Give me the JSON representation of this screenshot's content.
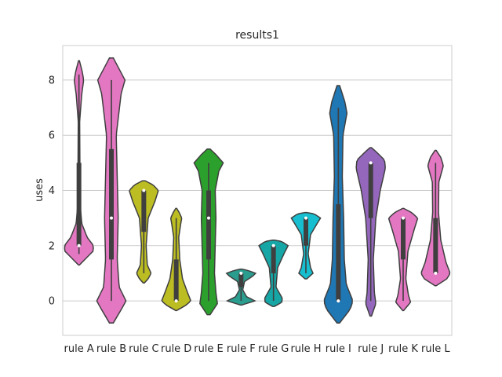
{
  "chart_data": {
    "type": "violin",
    "title": "results1",
    "xlabel": "",
    "ylabel": "uses",
    "ylim": [
      -1.25,
      9.25
    ],
    "yticks": [
      0,
      2,
      4,
      6,
      8
    ],
    "grid": true,
    "categories": [
      "rule A",
      "rule B",
      "rule C",
      "rule D",
      "rule E",
      "rule F",
      "rule G",
      "rule H",
      "rule I",
      "rule J",
      "rule K",
      "rule L"
    ],
    "series": [
      {
        "category": "rule A",
        "color": "#e377c2",
        "kde_range": [
          1.3,
          8.7
        ],
        "whisker": [
          1.7,
          8.2
        ],
        "iqr": [
          2.0,
          5.0
        ],
        "median": 2,
        "density": [
          [
            1.3,
            0.02
          ],
          [
            1.5,
            0.25
          ],
          [
            1.8,
            0.6
          ],
          [
            2.0,
            0.62
          ],
          [
            2.3,
            0.35
          ],
          [
            2.8,
            0.12
          ],
          [
            3.5,
            0.05
          ],
          [
            5,
            0.04
          ],
          [
            6.5,
            0.03
          ],
          [
            7.5,
            0.12
          ],
          [
            8.0,
            0.2
          ],
          [
            8.3,
            0.14
          ],
          [
            8.7,
            0.02
          ]
        ]
      },
      {
        "category": "rule B",
        "color": "#e377c2",
        "kde_range": [
          -0.8,
          8.8
        ],
        "whisker": [
          0,
          8
        ],
        "iqr": [
          1.5,
          5.5
        ],
        "median": 3,
        "density": [
          [
            -0.8,
            0.02
          ],
          [
            -0.2,
            0.12
          ],
          [
            0,
            0.15
          ],
          [
            0.5,
            0.08
          ],
          [
            1.5,
            0.06
          ],
          [
            3,
            0.07
          ],
          [
            4.5,
            0.06
          ],
          [
            6,
            0.05
          ],
          [
            7.5,
            0.1
          ],
          [
            8,
            0.14
          ],
          [
            8.4,
            0.08
          ],
          [
            8.8,
            0.02
          ]
        ]
      },
      {
        "category": "rule C",
        "color": "#bcbd22",
        "kde_range": [
          0.65,
          4.35
        ],
        "whisker": [
          1,
          4
        ],
        "iqr": [
          2.5,
          4.0
        ],
        "median": 4,
        "density": [
          [
            0.65,
            0.02
          ],
          [
            0.8,
            0.15
          ],
          [
            1.0,
            0.25
          ],
          [
            1.3,
            0.12
          ],
          [
            2,
            0.08
          ],
          [
            3,
            0.15
          ],
          [
            3.6,
            0.38
          ],
          [
            4.0,
            0.5
          ],
          [
            4.2,
            0.32
          ],
          [
            4.35,
            0.05
          ]
        ]
      },
      {
        "category": "rule D",
        "color": "#bcbd22",
        "kde_range": [
          -0.35,
          3.35
        ],
        "whisker": [
          0,
          3
        ],
        "iqr": [
          0,
          1.5
        ],
        "median": 0,
        "density": [
          [
            -0.35,
            0.02
          ],
          [
            -0.15,
            0.4
          ],
          [
            0,
            0.58
          ],
          [
            0.3,
            0.45
          ],
          [
            0.8,
            0.25
          ],
          [
            1.5,
            0.14
          ],
          [
            2.3,
            0.1
          ],
          [
            2.8,
            0.18
          ],
          [
            3.0,
            0.22
          ],
          [
            3.2,
            0.12
          ],
          [
            3.35,
            0.02
          ]
        ]
      },
      {
        "category": "rule E",
        "color": "#2ca02c",
        "kde_range": [
          -0.5,
          5.5
        ],
        "whisker": [
          0,
          5
        ],
        "iqr": [
          1.5,
          4.0
        ],
        "median": 3,
        "density": [
          [
            -0.5,
            0.02
          ],
          [
            -0.1,
            0.12
          ],
          [
            0.3,
            0.1
          ],
          [
            1,
            0.08
          ],
          [
            2,
            0.09
          ],
          [
            3,
            0.1
          ],
          [
            4,
            0.09
          ],
          [
            4.7,
            0.14
          ],
          [
            5.0,
            0.2
          ],
          [
            5.3,
            0.1
          ],
          [
            5.5,
            0.02
          ]
        ]
      },
      {
        "category": "rule F",
        "color": "#2a9d8f",
        "kde_range": [
          -0.15,
          1.15
        ],
        "whisker": [
          0,
          1
        ],
        "iqr": [
          0.5,
          1.0
        ],
        "median": 1,
        "density": [
          [
            -0.15,
            0.05
          ],
          [
            0,
            1.0
          ],
          [
            0.15,
            0.4
          ],
          [
            0.4,
            0.12
          ],
          [
            0.7,
            0.25
          ],
          [
            0.9,
            0.85
          ],
          [
            1.0,
            1.05
          ],
          [
            1.1,
            0.5
          ],
          [
            1.15,
            0.05
          ]
        ]
      },
      {
        "category": "rule G",
        "color": "#17a6a6",
        "kde_range": [
          -0.2,
          2.2
        ],
        "whisker": [
          0,
          2
        ],
        "iqr": [
          1.0,
          2.0
        ],
        "median": 2,
        "density": [
          [
            -0.2,
            0.05
          ],
          [
            -0.05,
            0.4
          ],
          [
            0.1,
            0.42
          ],
          [
            0.5,
            0.12
          ],
          [
            1.2,
            0.2
          ],
          [
            1.7,
            0.5
          ],
          [
            2.0,
            0.7
          ],
          [
            2.15,
            0.4
          ],
          [
            2.2,
            0.05
          ]
        ]
      },
      {
        "category": "rule H",
        "color": "#17becf",
        "kde_range": [
          0.8,
          3.2
        ],
        "whisker": [
          1,
          3
        ],
        "iqr": [
          2.0,
          3.0
        ],
        "median": 3,
        "density": [
          [
            0.8,
            0.05
          ],
          [
            1.0,
            0.38
          ],
          [
            1.2,
            0.25
          ],
          [
            1.7,
            0.12
          ],
          [
            2.4,
            0.25
          ],
          [
            2.8,
            0.6
          ],
          [
            3.0,
            0.78
          ],
          [
            3.15,
            0.45
          ],
          [
            3.2,
            0.05
          ]
        ]
      },
      {
        "category": "rule I",
        "color": "#1f77b4",
        "kde_range": [
          -0.8,
          7.8
        ],
        "whisker": [
          0,
          7
        ],
        "iqr": [
          0,
          3.5
        ],
        "median": 0,
        "density": [
          [
            -0.8,
            0.02
          ],
          [
            -0.3,
            0.18
          ],
          [
            0,
            0.22
          ],
          [
            0.6,
            0.12
          ],
          [
            1.5,
            0.09
          ],
          [
            3,
            0.08
          ],
          [
            4.5,
            0.06
          ],
          [
            6,
            0.07
          ],
          [
            6.8,
            0.13
          ],
          [
            7.2,
            0.1
          ],
          [
            7.8,
            0.02
          ]
        ]
      },
      {
        "category": "rule J",
        "color": "#9467bd",
        "kde_range": [
          -0.55,
          5.55
        ],
        "whisker": [
          0,
          5
        ],
        "iqr": [
          3.0,
          5.0
        ],
        "median": 5,
        "density": [
          [
            -0.55,
            0.02
          ],
          [
            -0.1,
            0.14
          ],
          [
            0.3,
            0.1
          ],
          [
            1.5,
            0.07
          ],
          [
            3,
            0.14
          ],
          [
            4,
            0.26
          ],
          [
            4.8,
            0.4
          ],
          [
            5.1,
            0.38
          ],
          [
            5.4,
            0.15
          ],
          [
            5.55,
            0.02
          ]
        ]
      },
      {
        "category": "rule K",
        "color": "#e377c2",
        "kde_range": [
          -0.35,
          3.35
        ],
        "whisker": [
          0,
          3
        ],
        "iqr": [
          1.5,
          3.0
        ],
        "median": 3,
        "density": [
          [
            -0.35,
            0.02
          ],
          [
            -0.05,
            0.28
          ],
          [
            0.2,
            0.2
          ],
          [
            0.8,
            0.1
          ],
          [
            1.8,
            0.18
          ],
          [
            2.6,
            0.42
          ],
          [
            3.0,
            0.55
          ],
          [
            3.2,
            0.32
          ],
          [
            3.35,
            0.02
          ]
        ]
      },
      {
        "category": "rule L",
        "color": "#e377c2",
        "kde_range": [
          0.55,
          5.45
        ],
        "whisker": [
          1,
          5
        ],
        "iqr": [
          1.0,
          3.0
        ],
        "median": 1,
        "density": [
          [
            0.55,
            0.02
          ],
          [
            0.8,
            0.35
          ],
          [
            1.0,
            0.45
          ],
          [
            1.4,
            0.32
          ],
          [
            2.2,
            0.16
          ],
          [
            3.2,
            0.09
          ],
          [
            4.3,
            0.1
          ],
          [
            4.9,
            0.24
          ],
          [
            5.2,
            0.16
          ],
          [
            5.45,
            0.02
          ]
        ]
      }
    ]
  }
}
